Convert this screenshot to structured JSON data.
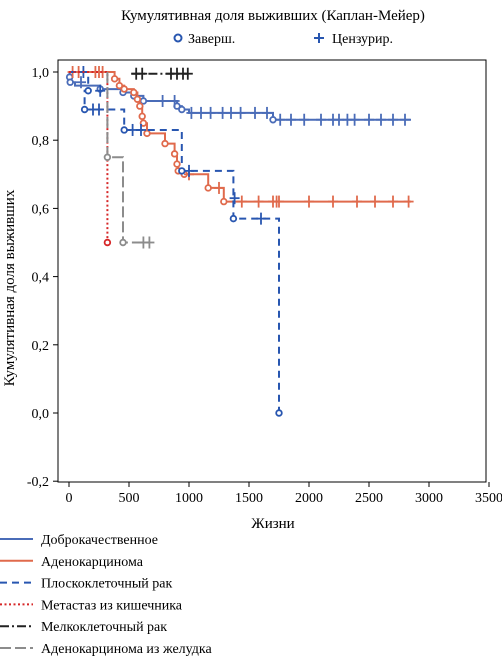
{
  "chart_data": {
    "type": "line",
    "subtype": "kaplan-meier",
    "title": "Кумулятивная доля выживших (Каплан-Мейер)",
    "xlabel": "Жизни",
    "ylabel": "Кумулятивная доля выживших",
    "xlim": [
      -50,
      3500
    ],
    "ylim": [
      -0.2,
      1.0
    ],
    "x_ticks": [
      0,
      500,
      1000,
      1500,
      2000,
      2500,
      3000,
      3500
    ],
    "x_tick_labels": [
      "0",
      "500",
      "1000",
      "1500",
      "2000",
      "2500",
      "3000",
      "3500"
    ],
    "y_ticks": [
      -0.2,
      0.0,
      0.2,
      0.4,
      0.6,
      0.8,
      1.0
    ],
    "y_tick_labels": [
      "-0,2",
      "0,0",
      "0,2",
      "0,4",
      "0,6",
      "0,8",
      "1,0"
    ],
    "grid": false,
    "marker_legend": [
      {
        "label": "Заверш.",
        "symbol": "circle"
      },
      {
        "label": "Цензурир.",
        "symbol": "plus"
      }
    ],
    "series": [
      {
        "name": "Доброкачественное",
        "color": "#4a6cb8",
        "dash": "solid",
        "steps": [
          [
            0,
            1.0
          ],
          [
            5,
            0.985
          ],
          [
            10,
            0.97
          ],
          [
            50,
            0.96
          ],
          [
            260,
            0.95
          ],
          [
            450,
            0.94
          ],
          [
            540,
            0.93
          ],
          [
            620,
            0.915
          ],
          [
            900,
            0.9
          ],
          [
            940,
            0.89
          ],
          [
            1000,
            0.88
          ],
          [
            1700,
            0.86
          ],
          [
            2850,
            0.86
          ]
        ],
        "events": [
          [
            5,
            0.985
          ],
          [
            10,
            0.97
          ],
          [
            260,
            0.95
          ],
          [
            450,
            0.94
          ],
          [
            540,
            0.93
          ],
          [
            620,
            0.915
          ],
          [
            900,
            0.9
          ],
          [
            940,
            0.89
          ],
          [
            1700,
            0.86
          ]
        ],
        "censored": [
          [
            100,
            0.97
          ],
          [
            780,
            0.915
          ],
          [
            880,
            0.915
          ],
          [
            1020,
            0.88
          ],
          [
            1100,
            0.88
          ],
          [
            1180,
            0.88
          ],
          [
            1280,
            0.88
          ],
          [
            1350,
            0.88
          ],
          [
            1430,
            0.88
          ],
          [
            1550,
            0.88
          ],
          [
            1650,
            0.88
          ],
          [
            1760,
            0.86
          ],
          [
            1850,
            0.86
          ],
          [
            1960,
            0.86
          ],
          [
            2100,
            0.86
          ],
          [
            2200,
            0.86
          ],
          [
            2250,
            0.86
          ],
          [
            2320,
            0.86
          ],
          [
            2380,
            0.86
          ],
          [
            2500,
            0.86
          ],
          [
            2600,
            0.86
          ],
          [
            2700,
            0.86
          ],
          [
            2800,
            0.86
          ]
        ]
      },
      {
        "name": "Аденокарцинома",
        "color": "#e06a4c",
        "dash": "solid",
        "steps": [
          [
            0,
            1.0
          ],
          [
            380,
            0.98
          ],
          [
            420,
            0.96
          ],
          [
            460,
            0.95
          ],
          [
            540,
            0.94
          ],
          [
            570,
            0.92
          ],
          [
            590,
            0.9
          ],
          [
            610,
            0.87
          ],
          [
            620,
            0.85
          ],
          [
            650,
            0.82
          ],
          [
            800,
            0.79
          ],
          [
            880,
            0.76
          ],
          [
            900,
            0.73
          ],
          [
            910,
            0.71
          ],
          [
            960,
            0.7
          ],
          [
            1160,
            0.66
          ],
          [
            1290,
            0.62
          ],
          [
            2850,
            0.62
          ]
        ],
        "events": [
          [
            380,
            0.98
          ],
          [
            420,
            0.96
          ],
          [
            460,
            0.95
          ],
          [
            540,
            0.94
          ],
          [
            570,
            0.92
          ],
          [
            590,
            0.9
          ],
          [
            610,
            0.87
          ],
          [
            620,
            0.85
          ],
          [
            650,
            0.82
          ],
          [
            800,
            0.79
          ],
          [
            880,
            0.76
          ],
          [
            900,
            0.73
          ],
          [
            910,
            0.71
          ],
          [
            960,
            0.7
          ],
          [
            1160,
            0.66
          ],
          [
            1290,
            0.62
          ]
        ],
        "censored": [
          [
            30,
            1.0
          ],
          [
            80,
            1.0
          ],
          [
            220,
            1.0
          ],
          [
            250,
            1.0
          ],
          [
            280,
            1.0
          ],
          [
            1000,
            0.7
          ],
          [
            1250,
            0.66
          ],
          [
            1440,
            0.62
          ],
          [
            1580,
            0.62
          ],
          [
            1700,
            0.62
          ],
          [
            1730,
            0.62
          ],
          [
            1750,
            0.62
          ],
          [
            2000,
            0.62
          ],
          [
            2200,
            0.62
          ],
          [
            2400,
            0.62
          ],
          [
            2550,
            0.62
          ],
          [
            2700,
            0.62
          ],
          [
            2830,
            0.62
          ]
        ]
      },
      {
        "name": "Плоскоклеточный рак",
        "color": "#2856b0",
        "dash": "dashed",
        "steps": [
          [
            0,
            1.0
          ],
          [
            160,
            0.945
          ],
          [
            130,
            0.89
          ],
          [
            460,
            0.83
          ],
          [
            940,
            0.71
          ],
          [
            1370,
            0.57
          ],
          [
            1750,
            0.0
          ]
        ],
        "events": [
          [
            160,
            0.945
          ],
          [
            130,
            0.89
          ],
          [
            460,
            0.83
          ],
          [
            940,
            0.71
          ],
          [
            1370,
            0.57
          ],
          [
            1750,
            0.0
          ]
        ],
        "censored": [
          [
            120,
            1.0
          ],
          [
            260,
            0.945
          ],
          [
            200,
            0.89
          ],
          [
            250,
            0.89
          ],
          [
            530,
            0.83
          ],
          [
            600,
            0.83
          ],
          [
            1000,
            0.71
          ],
          [
            1380,
            0.63
          ],
          [
            1600,
            0.57
          ]
        ]
      },
      {
        "name": "Метастаз из кишечника",
        "color": "#d62728",
        "dash": "dotted",
        "steps": [
          [
            0,
            1.0
          ],
          [
            320,
            1.0
          ],
          [
            320,
            0.5
          ]
        ],
        "events": [
          [
            320,
            0.5
          ]
        ],
        "censored": []
      },
      {
        "name": "Мелкоклеточный рак",
        "color": "#222222",
        "dash": "dashdot",
        "steps": [
          [
            520,
            0.995
          ],
          [
            990,
            0.995
          ]
        ],
        "events": [],
        "censored": [
          [
            560,
            0.995
          ],
          [
            610,
            0.995
          ],
          [
            850,
            0.995
          ],
          [
            900,
            0.995
          ],
          [
            950,
            0.995
          ],
          [
            990,
            0.995
          ]
        ]
      },
      {
        "name": "Аденокарцинома из желудка",
        "color": "#8c8c8c",
        "dash": "longdash",
        "steps": [
          [
            320,
            1.0
          ],
          [
            320,
            0.75
          ],
          [
            450,
            0.75
          ],
          [
            450,
            0.5
          ],
          [
            670,
            0.5
          ]
        ],
        "events": [
          [
            320,
            0.75
          ],
          [
            450,
            0.5
          ]
        ],
        "censored": [
          [
            620,
            0.5
          ],
          [
            670,
            0.5
          ]
        ]
      }
    ]
  }
}
